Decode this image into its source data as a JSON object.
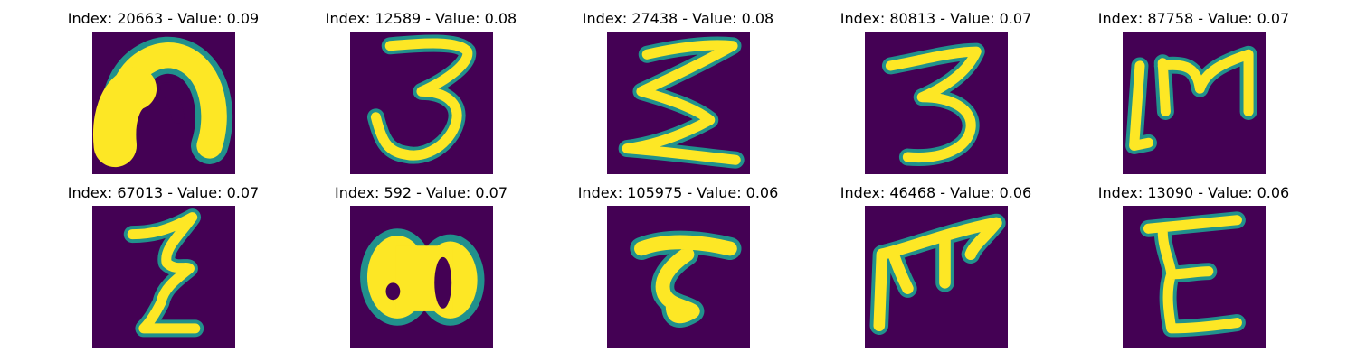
{
  "figure": {
    "background": "#ffffff",
    "colormap": {
      "background": "#440154",
      "foreground": "#fde725",
      "edge": "#21918c"
    },
    "panels": [
      {
        "title": "Index: 20663 - Value: 0.09"
      },
      {
        "title": "Index: 12589 - Value: 0.08"
      },
      {
        "title": "Index: 27438 - Value: 0.08"
      },
      {
        "title": "Index: 80813 - Value: 0.07"
      },
      {
        "title": "Index: 87758 - Value: 0.07"
      },
      {
        "title": "Index: 67013 - Value: 0.07"
      },
      {
        "title": "Index: 592 - Value: 0.07"
      },
      {
        "title": "Index: 105975 - Value: 0.06"
      },
      {
        "title": "Index: 46468 - Value: 0.06"
      },
      {
        "title": "Index: 13090 - Value: 0.06"
      }
    ]
  }
}
